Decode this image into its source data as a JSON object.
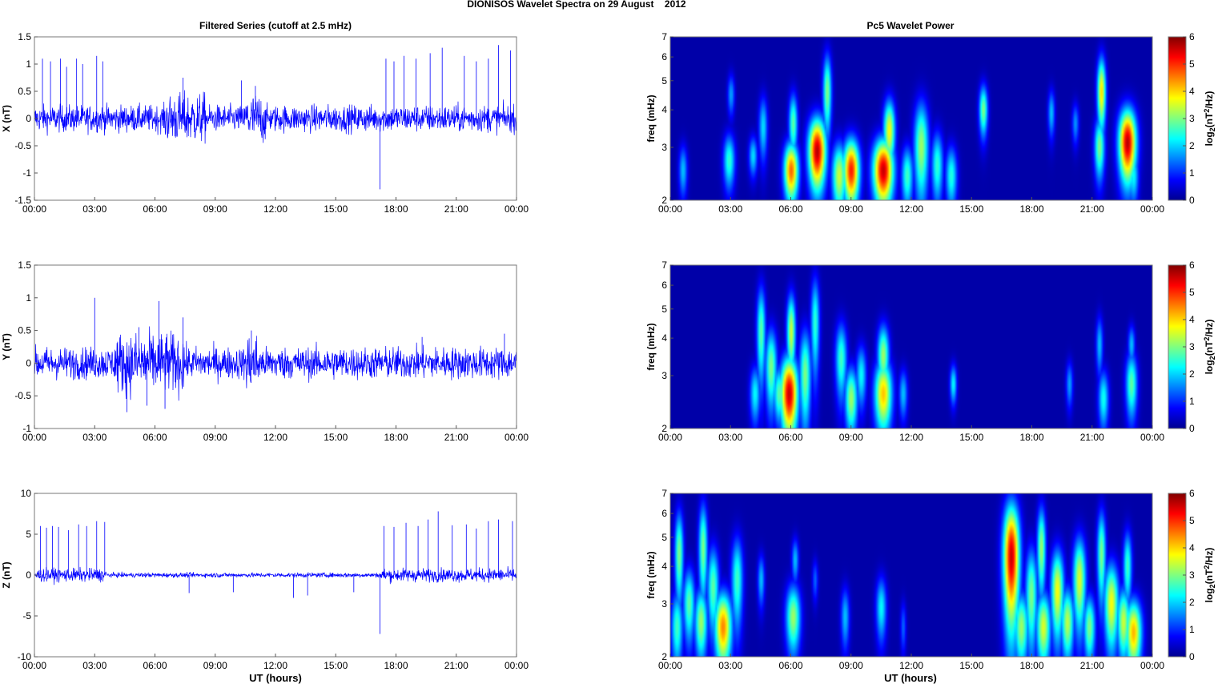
{
  "figure": {
    "title": "DIONISOS Wavelet Spectra on 29 August    2012",
    "left_column_title": "Filtered Series (cutoff at 2.5 mHz)",
    "right_column_title": "Pc5 Wavelet Power",
    "time_xlabel": "UT (hours)",
    "freq_ylabel": "freq (mHz)",
    "colorbar_label": "log2(nT2/Hz)",
    "colormap": "jet",
    "line_color": "#0000ff",
    "background_color": "#00008f"
  },
  "chart_data": [
    {
      "type": "line",
      "panel": "X",
      "ylabel": "X (nT)",
      "ylim": [
        -1.5,
        1.5
      ],
      "yticks": [
        "1.5",
        "1",
        "0.5",
        "0",
        "-0.5",
        "-1",
        "-1.5"
      ],
      "xticks": [
        "00:00",
        "03:00",
        "06:00",
        "09:00",
        "12:00",
        "15:00",
        "18:00",
        "21:00",
        "00:00"
      ],
      "xlim_hours": [
        0,
        24
      ],
      "noise_amplitude_nT": 0.12,
      "activity_segments_hours": [
        [
          6.5,
          8.5
        ],
        [
          10.5,
          11.5
        ]
      ],
      "spikes": [
        {
          "x": 0.4,
          "y": 1.1
        },
        {
          "x": 0.8,
          "y": 1.05
        },
        {
          "x": 1.3,
          "y": 1.1
        },
        {
          "x": 1.6,
          "y": 0.95
        },
        {
          "x": 2.1,
          "y": 1.1
        },
        {
          "x": 2.4,
          "y": 1.0
        },
        {
          "x": 3.1,
          "y": 1.15
        },
        {
          "x": 3.4,
          "y": 1.05
        },
        {
          "x": 7.4,
          "y": 0.75
        },
        {
          "x": 10.3,
          "y": 0.7
        },
        {
          "x": 11.0,
          "y": 0.6
        },
        {
          "x": 17.2,
          "y": -1.3
        },
        {
          "x": 17.5,
          "y": 1.1
        },
        {
          "x": 17.9,
          "y": 1.05
        },
        {
          "x": 18.4,
          "y": 1.15
        },
        {
          "x": 19.0,
          "y": 1.1
        },
        {
          "x": 19.7,
          "y": 1.2
        },
        {
          "x": 20.3,
          "y": 1.3
        },
        {
          "x": 21.4,
          "y": 1.15
        },
        {
          "x": 22.0,
          "y": 1.05
        },
        {
          "x": 22.6,
          "y": 1.1
        },
        {
          "x": 23.1,
          "y": 1.35
        },
        {
          "x": 23.7,
          "y": 1.25
        }
      ]
    },
    {
      "type": "line",
      "panel": "Y",
      "ylabel": "Y (nT)",
      "ylim": [
        -1,
        1.5
      ],
      "yticks": [
        "1.5",
        "1",
        "0.5",
        "0",
        "-0.5",
        "-1"
      ],
      "xticks": [
        "00:00",
        "03:00",
        "06:00",
        "09:00",
        "12:00",
        "15:00",
        "18:00",
        "21:00",
        "00:00"
      ],
      "xlim_hours": [
        0,
        24
      ],
      "noise_amplitude_nT": 0.12,
      "activity_segments_hours": [
        [
          4.0,
          7.5
        ],
        [
          10.5,
          11.2
        ]
      ],
      "spikes": [
        {
          "x": 3.0,
          "y": 1.0
        },
        {
          "x": 4.6,
          "y": -0.75
        },
        {
          "x": 5.2,
          "y": 0.55
        },
        {
          "x": 5.6,
          "y": -0.65
        },
        {
          "x": 6.2,
          "y": 0.95
        },
        {
          "x": 6.5,
          "y": -0.7
        },
        {
          "x": 7.4,
          "y": 0.7
        },
        {
          "x": 10.8,
          "y": 0.5
        },
        {
          "x": 19.3,
          "y": 0.4
        },
        {
          "x": 23.4,
          "y": 0.45
        }
      ]
    },
    {
      "type": "line",
      "panel": "Z",
      "ylabel": "Z (nT)",
      "ylim": [
        -10,
        10
      ],
      "yticks": [
        "10",
        "5",
        "0",
        "-5",
        "-10"
      ],
      "xticks": [
        "00:00",
        "03:00",
        "06:00",
        "09:00",
        "12:00",
        "15:00",
        "18:00",
        "21:00",
        "00:00"
      ],
      "xlim_hours": [
        0,
        24
      ],
      "noise_amplitude_nT": 0.4,
      "quiet_segment_hours": [
        3.6,
        17.2
      ],
      "spikes": [
        {
          "x": 0.3,
          "y": 6.0
        },
        {
          "x": 0.6,
          "y": 5.8
        },
        {
          "x": 0.9,
          "y": 6.0
        },
        {
          "x": 1.2,
          "y": 5.9
        },
        {
          "x": 1.7,
          "y": 5.5
        },
        {
          "x": 2.2,
          "y": 6.2
        },
        {
          "x": 2.6,
          "y": 6.0
        },
        {
          "x": 3.1,
          "y": 6.6
        },
        {
          "x": 3.5,
          "y": 6.5
        },
        {
          "x": 7.7,
          "y": -2.2
        },
        {
          "x": 9.9,
          "y": -2.1
        },
        {
          "x": 12.9,
          "y": -2.8
        },
        {
          "x": 13.6,
          "y": -2.5
        },
        {
          "x": 15.9,
          "y": -2.1
        },
        {
          "x": 17.2,
          "y": -7.2
        },
        {
          "x": 17.4,
          "y": 6.0
        },
        {
          "x": 17.9,
          "y": 5.9
        },
        {
          "x": 18.5,
          "y": 6.4
        },
        {
          "x": 19.1,
          "y": 6.0
        },
        {
          "x": 19.6,
          "y": 6.8
        },
        {
          "x": 20.1,
          "y": 7.8
        },
        {
          "x": 20.8,
          "y": 6.1
        },
        {
          "x": 21.5,
          "y": 6.2
        },
        {
          "x": 22.0,
          "y": 5.7
        },
        {
          "x": 22.6,
          "y": 6.6
        },
        {
          "x": 23.1,
          "y": 6.8
        },
        {
          "x": 23.8,
          "y": 6.6
        }
      ]
    },
    {
      "type": "heatmap",
      "panel": "X",
      "ylabel": "freq (mHz)",
      "yscale": "log",
      "ylim_mHz": [
        2,
        7
      ],
      "yticks": [
        "7",
        "6",
        "5",
        "4",
        "3",
        "2"
      ],
      "xticks": [
        "00:00",
        "03:00",
        "06:00",
        "09:00",
        "12:00",
        "15:00",
        "18:00",
        "21:00",
        "00:00"
      ],
      "clim": [
        0,
        6
      ],
      "colorbar_ticks": [
        "6",
        "5",
        "4",
        "3",
        "2",
        "1",
        "0"
      ],
      "blobs": [
        {
          "t": 0.6,
          "f": 2.5,
          "p": 1.8,
          "w": 0.15,
          "h": 0.35
        },
        {
          "t": 2.9,
          "f": 2.7,
          "p": 2.5,
          "w": 0.2,
          "h": 0.4
        },
        {
          "t": 3.0,
          "f": 4.5,
          "p": 1.6,
          "w": 0.12,
          "h": 0.5
        },
        {
          "t": 4.1,
          "f": 2.8,
          "p": 2.0,
          "w": 0.15,
          "h": 0.3
        },
        {
          "t": 4.6,
          "f": 3.5,
          "p": 2.0,
          "w": 0.15,
          "h": 0.6
        },
        {
          "t": 6.0,
          "f": 2.5,
          "p": 4.8,
          "w": 0.25,
          "h": 0.4
        },
        {
          "t": 6.1,
          "f": 3.6,
          "p": 2.8,
          "w": 0.15,
          "h": 0.6
        },
        {
          "t": 7.3,
          "f": 2.9,
          "p": 5.9,
          "w": 0.3,
          "h": 0.55
        },
        {
          "t": 7.8,
          "f": 4.6,
          "p": 3.0,
          "w": 0.15,
          "h": 1.0
        },
        {
          "t": 8.4,
          "f": 2.4,
          "p": 3.5,
          "w": 0.25,
          "h": 0.45
        },
        {
          "t": 9.0,
          "f": 2.5,
          "p": 5.3,
          "w": 0.28,
          "h": 0.45
        },
        {
          "t": 10.6,
          "f": 2.5,
          "p": 5.8,
          "w": 0.35,
          "h": 0.45
        },
        {
          "t": 10.9,
          "f": 3.4,
          "p": 3.8,
          "w": 0.2,
          "h": 0.6
        },
        {
          "t": 11.8,
          "f": 2.4,
          "p": 2.6,
          "w": 0.2,
          "h": 0.4
        },
        {
          "t": 12.5,
          "f": 3.0,
          "p": 3.2,
          "w": 0.25,
          "h": 0.8
        },
        {
          "t": 13.3,
          "f": 2.6,
          "p": 2.5,
          "w": 0.2,
          "h": 0.5
        },
        {
          "t": 14.0,
          "f": 2.4,
          "p": 2.4,
          "w": 0.2,
          "h": 0.4
        },
        {
          "t": 15.6,
          "f": 4.0,
          "p": 3.0,
          "w": 0.15,
          "h": 0.55
        },
        {
          "t": 19.0,
          "f": 3.9,
          "p": 1.8,
          "w": 0.12,
          "h": 0.5
        },
        {
          "t": 20.2,
          "f": 3.6,
          "p": 1.5,
          "w": 0.12,
          "h": 0.4
        },
        {
          "t": 21.4,
          "f": 3.0,
          "p": 3.0,
          "w": 0.18,
          "h": 0.5
        },
        {
          "t": 21.5,
          "f": 4.6,
          "p": 4.0,
          "w": 0.15,
          "h": 0.9
        },
        {
          "t": 22.8,
          "f": 3.1,
          "p": 5.9,
          "w": 0.3,
          "h": 0.6
        },
        {
          "t": 23.1,
          "f": 2.4,
          "p": 2.2,
          "w": 0.18,
          "h": 0.35
        }
      ]
    },
    {
      "type": "heatmap",
      "panel": "Y",
      "ylabel": "freq (mHz)",
      "yscale": "log",
      "ylim_mHz": [
        2,
        7
      ],
      "yticks": [
        "7",
        "6",
        "5",
        "4",
        "3",
        "2"
      ],
      "xticks": [
        "00:00",
        "03:00",
        "06:00",
        "09:00",
        "12:00",
        "15:00",
        "18:00",
        "21:00",
        "00:00"
      ],
      "clim": [
        0,
        6
      ],
      "colorbar_ticks": [
        "6",
        "5",
        "4",
        "3",
        "2",
        "1",
        "0"
      ],
      "blobs": [
        {
          "t": 4.2,
          "f": 2.6,
          "p": 2.2,
          "w": 0.18,
          "h": 0.4
        },
        {
          "t": 4.5,
          "f": 4.2,
          "p": 2.8,
          "w": 0.15,
          "h": 1.1
        },
        {
          "t": 5.0,
          "f": 3.2,
          "p": 3.0,
          "w": 0.2,
          "h": 0.7
        },
        {
          "t": 5.4,
          "f": 2.6,
          "p": 2.8,
          "w": 0.2,
          "h": 0.4
        },
        {
          "t": 5.9,
          "f": 2.6,
          "p": 5.8,
          "w": 0.3,
          "h": 0.55
        },
        {
          "t": 6.0,
          "f": 4.2,
          "p": 3.5,
          "w": 0.15,
          "h": 0.9
        },
        {
          "t": 6.7,
          "f": 3.0,
          "p": 3.0,
          "w": 0.2,
          "h": 0.8
        },
        {
          "t": 7.2,
          "f": 4.5,
          "p": 2.5,
          "w": 0.15,
          "h": 1.2
        },
        {
          "t": 8.5,
          "f": 3.4,
          "p": 2.6,
          "w": 0.2,
          "h": 0.7
        },
        {
          "t": 9.0,
          "f": 2.5,
          "p": 3.2,
          "w": 0.22,
          "h": 0.45
        },
        {
          "t": 9.5,
          "f": 3.0,
          "p": 2.2,
          "w": 0.18,
          "h": 0.5
        },
        {
          "t": 10.6,
          "f": 2.6,
          "p": 4.2,
          "w": 0.3,
          "h": 0.5
        },
        {
          "t": 10.6,
          "f": 3.5,
          "p": 3.2,
          "w": 0.2,
          "h": 0.6
        },
        {
          "t": 11.6,
          "f": 2.6,
          "p": 1.8,
          "w": 0.15,
          "h": 0.35
        },
        {
          "t": 14.1,
          "f": 2.8,
          "p": 2.2,
          "w": 0.12,
          "h": 0.3
        },
        {
          "t": 19.9,
          "f": 2.8,
          "p": 1.6,
          "w": 0.12,
          "h": 0.35
        },
        {
          "t": 21.6,
          "f": 2.5,
          "p": 2.3,
          "w": 0.18,
          "h": 0.4
        },
        {
          "t": 21.4,
          "f": 3.8,
          "p": 1.8,
          "w": 0.12,
          "h": 0.6
        },
        {
          "t": 23.0,
          "f": 2.8,
          "p": 2.8,
          "w": 0.2,
          "h": 0.5
        },
        {
          "t": 23.0,
          "f": 3.8,
          "p": 1.8,
          "w": 0.12,
          "h": 0.4
        }
      ]
    },
    {
      "type": "heatmap",
      "panel": "Z",
      "ylabel": "freq (mHz)",
      "yscale": "log",
      "ylim_mHz": [
        2,
        7
      ],
      "yticks": [
        "7",
        "6",
        "5",
        "4",
        "3",
        "2"
      ],
      "xticks": [
        "00:00",
        "03:00",
        "06:00",
        "09:00",
        "12:00",
        "15:00",
        "18:00",
        "21:00",
        "00:00"
      ],
      "clim": [
        0,
        6
      ],
      "colorbar_ticks": [
        "6",
        "5",
        "4",
        "3",
        "2",
        "1",
        "0"
      ],
      "blobs": [
        {
          "t": 0.3,
          "f": 2.5,
          "p": 2.6,
          "w": 0.2,
          "h": 0.5
        },
        {
          "t": 0.4,
          "f": 4.4,
          "p": 3.0,
          "w": 0.15,
          "h": 1.1
        },
        {
          "t": 0.9,
          "f": 3.0,
          "p": 2.8,
          "w": 0.2,
          "h": 0.6
        },
        {
          "t": 1.5,
          "f": 2.6,
          "p": 3.2,
          "w": 0.22,
          "h": 0.5
        },
        {
          "t": 1.6,
          "f": 4.6,
          "p": 3.0,
          "w": 0.15,
          "h": 1.2
        },
        {
          "t": 2.1,
          "f": 3.4,
          "p": 2.8,
          "w": 0.2,
          "h": 0.8
        },
        {
          "t": 2.6,
          "f": 2.5,
          "p": 4.6,
          "w": 0.3,
          "h": 0.5
        },
        {
          "t": 3.3,
          "f": 3.6,
          "p": 2.6,
          "w": 0.2,
          "h": 0.9
        },
        {
          "t": 4.5,
          "f": 3.6,
          "p": 1.8,
          "w": 0.12,
          "h": 0.5
        },
        {
          "t": 6.1,
          "f": 2.7,
          "p": 3.2,
          "w": 0.25,
          "h": 0.5
        },
        {
          "t": 6.2,
          "f": 4.2,
          "p": 1.8,
          "w": 0.12,
          "h": 0.5
        },
        {
          "t": 7.2,
          "f": 3.6,
          "p": 1.2,
          "w": 0.1,
          "h": 0.4
        },
        {
          "t": 8.7,
          "f": 2.7,
          "p": 1.8,
          "w": 0.15,
          "h": 0.45
        },
        {
          "t": 10.5,
          "f": 2.9,
          "p": 2.2,
          "w": 0.18,
          "h": 0.5
        },
        {
          "t": 11.6,
          "f": 2.5,
          "p": 1.2,
          "w": 0.1,
          "h": 0.35
        },
        {
          "t": 17.0,
          "f": 4.3,
          "p": 5.8,
          "w": 0.28,
          "h": 1.4
        },
        {
          "t": 17.5,
          "f": 2.5,
          "p": 3.2,
          "w": 0.25,
          "h": 0.5
        },
        {
          "t": 18.0,
          "f": 3.2,
          "p": 3.0,
          "w": 0.2,
          "h": 0.9
        },
        {
          "t": 18.6,
          "f": 2.5,
          "p": 3.6,
          "w": 0.25,
          "h": 0.5
        },
        {
          "t": 18.5,
          "f": 4.6,
          "p": 3.2,
          "w": 0.15,
          "h": 1.1
        },
        {
          "t": 19.3,
          "f": 3.3,
          "p": 3.8,
          "w": 0.22,
          "h": 0.8
        },
        {
          "t": 19.8,
          "f": 2.6,
          "p": 3.4,
          "w": 0.22,
          "h": 0.5
        },
        {
          "t": 20.4,
          "f": 3.6,
          "p": 3.6,
          "w": 0.22,
          "h": 0.9
        },
        {
          "t": 20.9,
          "f": 2.5,
          "p": 3.0,
          "w": 0.2,
          "h": 0.45
        },
        {
          "t": 21.5,
          "f": 4.4,
          "p": 3.0,
          "w": 0.15,
          "h": 1.1
        },
        {
          "t": 22.0,
          "f": 3.0,
          "p": 3.8,
          "w": 0.25,
          "h": 0.7
        },
        {
          "t": 22.6,
          "f": 2.6,
          "p": 3.5,
          "w": 0.22,
          "h": 0.5
        },
        {
          "t": 23.1,
          "f": 2.4,
          "p": 4.3,
          "w": 0.28,
          "h": 0.45
        },
        {
          "t": 22.8,
          "f": 4.0,
          "p": 2.6,
          "w": 0.15,
          "h": 0.8
        }
      ]
    }
  ]
}
